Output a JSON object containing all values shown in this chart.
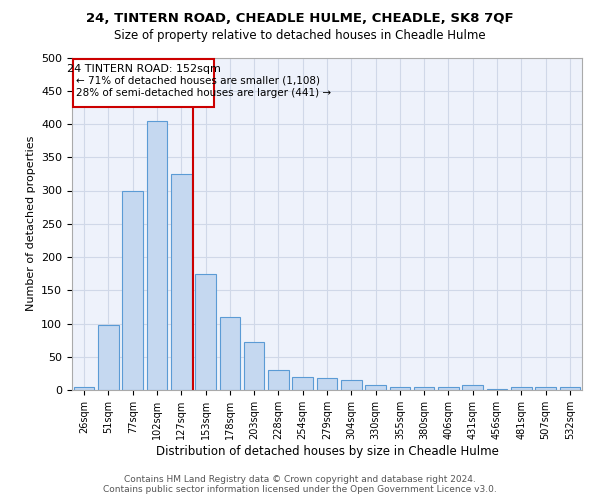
{
  "title1": "24, TINTERN ROAD, CHEADLE HULME, CHEADLE, SK8 7QF",
  "title2": "Size of property relative to detached houses in Cheadle Hulme",
  "xlabel": "Distribution of detached houses by size in Cheadle Hulme",
  "ylabel": "Number of detached properties",
  "categories": [
    "26sqm",
    "51sqm",
    "77sqm",
    "102sqm",
    "127sqm",
    "153sqm",
    "178sqm",
    "203sqm",
    "228sqm",
    "254sqm",
    "279sqm",
    "304sqm",
    "330sqm",
    "355sqm",
    "380sqm",
    "406sqm",
    "431sqm",
    "456sqm",
    "481sqm",
    "507sqm",
    "532sqm"
  ],
  "values": [
    5,
    98,
    300,
    405,
    325,
    175,
    110,
    72,
    30,
    20,
    18,
    15,
    8,
    5,
    4,
    4,
    7,
    2,
    4,
    4,
    4
  ],
  "bar_color": "#c5d8f0",
  "bar_edge_color": "#5b9bd5",
  "annotation_text_line1": "24 TINTERN ROAD: 152sqm",
  "annotation_text_line2": "← 71% of detached houses are smaller (1,108)",
  "annotation_text_line3": "28% of semi-detached houses are larger (441) →",
  "annotation_box_color": "#ffffff",
  "annotation_box_edge": "#cc0000",
  "vline_color": "#cc0000",
  "grid_color": "#d0d8e8",
  "background_color": "#eef2fb",
  "footer_text": "Contains HM Land Registry data © Crown copyright and database right 2024.\nContains public sector information licensed under the Open Government Licence v3.0.",
  "ylim": [
    0,
    500
  ],
  "yticks": [
    0,
    50,
    100,
    150,
    200,
    250,
    300,
    350,
    400,
    450,
    500
  ]
}
